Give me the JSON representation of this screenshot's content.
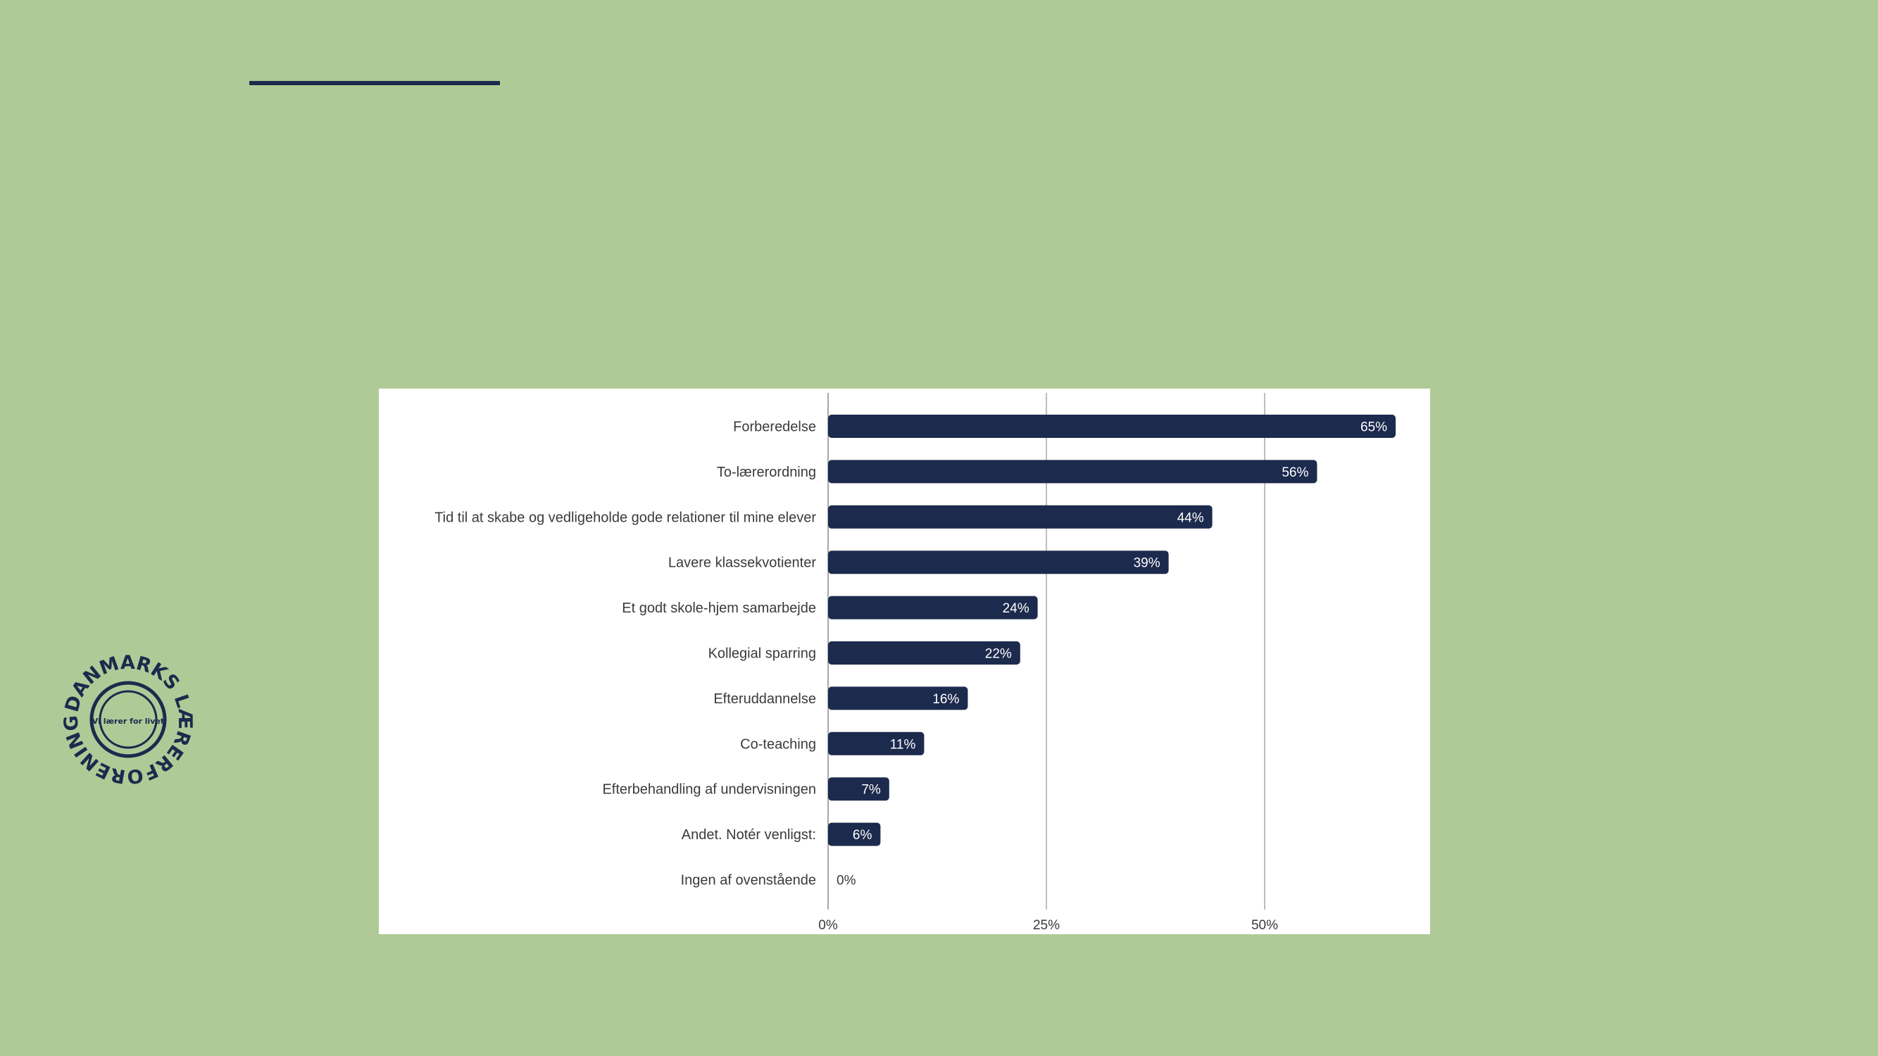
{
  "colors": {
    "background": "#afca96",
    "bar": "#1c2a4d",
    "accent": "#1c2a4d",
    "grid": "#a8a8a8",
    "panel": "#ffffff"
  },
  "logo": {
    "icon": "danmarks-laererforening-seal-icon",
    "text": "DANMARKS LÆRERFORENING",
    "inner_text": "Vi lærer for livet"
  },
  "chart_data": {
    "type": "bar",
    "orientation": "horizontal",
    "categories": [
      "Forberedelse",
      "To-lærerordning",
      "Tid til at skabe og vedligeholde gode relationer til mine elever",
      "Lavere klassekvotienter",
      "Et godt skole-hjem samarbejde",
      "Kollegial sparring",
      "Efteruddannelse",
      "Co-teaching",
      "Efterbehandling af undervisningen",
      "Andet. Notér venligst:",
      "Ingen af ovenstående"
    ],
    "values": [
      65,
      56,
      44,
      39,
      24,
      22,
      16,
      11,
      7,
      6,
      0
    ],
    "value_labels": [
      "65%",
      "56%",
      "44%",
      "39%",
      "24%",
      "22%",
      "16%",
      "11%",
      "7%",
      "6%",
      "0%"
    ],
    "x_ticks": [
      0,
      25,
      50
    ],
    "x_tick_labels": [
      "0%",
      "25%",
      "50%"
    ],
    "xlim": [
      0,
      69
    ],
    "grid": true,
    "title": "",
    "xlabel": "",
    "ylabel": ""
  }
}
